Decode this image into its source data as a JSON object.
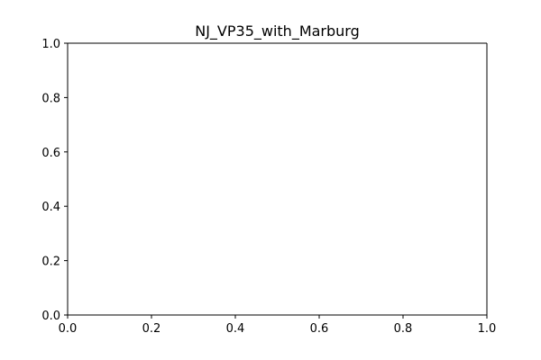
{
  "chart_data": {
    "type": "line",
    "title": "NJ_VP35_with_Marburg",
    "xlabel": "",
    "ylabel": "",
    "xlim": [
      0.0,
      1.0
    ],
    "ylim": [
      0.0,
      1.0
    ],
    "x_ticks": [
      "0.0",
      "0.2",
      "0.4",
      "0.6",
      "0.8",
      "1.0"
    ],
    "y_ticks": [
      "0.0",
      "0.2",
      "0.4",
      "0.6",
      "0.8",
      "1.0"
    ],
    "series": [],
    "grid": false,
    "legend": "none"
  }
}
